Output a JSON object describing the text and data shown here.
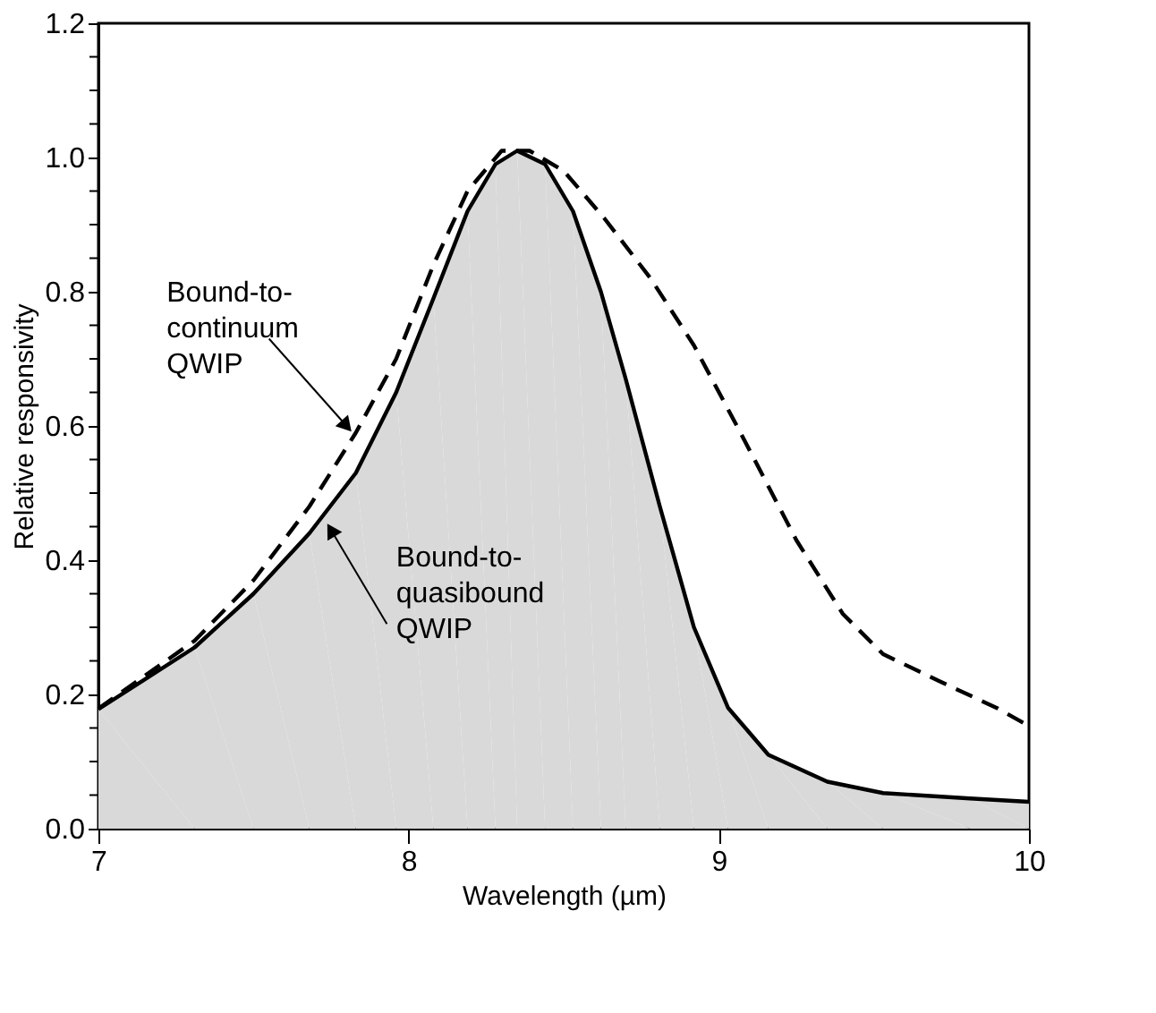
{
  "chart_data": {
    "type": "line",
    "xlabel": "Wavelength (µm)",
    "ylabel": "Relative responsivity",
    "xlim": [
      7,
      10
    ],
    "xticks": [
      7,
      8,
      9,
      10
    ],
    "ylim": [
      0,
      1.2
    ],
    "yticks": [
      {
        "value": 0,
        "label": "0.0"
      },
      {
        "value": 0.05,
        "label": null
      },
      {
        "value": 0.1,
        "label": null
      },
      {
        "value": 0.15,
        "label": null
      },
      {
        "value": 0.2,
        "label": "0.2"
      },
      {
        "value": 0.25,
        "label": null
      },
      {
        "value": 0.3,
        "label": null
      },
      {
        "value": 0.35,
        "label": null
      },
      {
        "value": 0.4,
        "label": "0.4"
      },
      {
        "value": 0.45,
        "label": null
      },
      {
        "value": 0.5,
        "label": null
      },
      {
        "value": 0.55,
        "label": null
      },
      {
        "value": 0.6,
        "label": "0.6"
      },
      {
        "value": 0.65,
        "label": null
      },
      {
        "value": 0.7,
        "label": null
      },
      {
        "value": 0.75,
        "label": null
      },
      {
        "value": 0.8,
        "label": "0.8"
      },
      {
        "value": 0.85,
        "label": null
      },
      {
        "value": 0.9,
        "label": null
      },
      {
        "value": 0.95,
        "label": null
      },
      {
        "value": 1.0,
        "label": "1.0"
      },
      {
        "value": 1.05,
        "label": null
      },
      {
        "value": 1.1,
        "label": null
      },
      {
        "value": 1.15,
        "label": null
      },
      {
        "value": 1.2,
        "label": "1.2"
      }
    ],
    "grid": false,
    "series": [
      {
        "type": "area",
        "color": "#d9d9d9",
        "line_style": "solid",
        "x": [
          7,
          7.31,
          7.5,
          7.68,
          7.83,
          7.96,
          8.08,
          8.19,
          8.28,
          8.35,
          8.44,
          8.53,
          8.62,
          8.7,
          8.81,
          8.92,
          9.03,
          9.16,
          9.35,
          9.53,
          9.81,
          10
        ],
        "values": [
          0.178,
          0.27,
          0.35,
          0.44,
          0.53,
          0.65,
          0.79,
          0.92,
          0.99,
          1.01,
          0.99,
          0.92,
          0.8,
          0.67,
          0.48,
          0.3,
          0.18,
          0.11,
          0.07,
          0.053,
          0.045,
          0.04
        ]
      },
      {
        "color": "#000000",
        "line_style": "dashed",
        "x": [
          7,
          7.31,
          7.5,
          7.68,
          7.83,
          7.96,
          8.08,
          8.19,
          8.3,
          8.39,
          8.5,
          8.63,
          8.78,
          8.92,
          9.07,
          9.25,
          9.4,
          9.53,
          9.71,
          9.9,
          10
        ],
        "values": [
          0.179,
          0.28,
          0.37,
          0.48,
          0.59,
          0.7,
          0.84,
          0.95,
          1.01,
          1.01,
          0.98,
          0.91,
          0.82,
          0.72,
          0.59,
          0.43,
          0.32,
          0.26,
          0.22,
          0.179,
          0.153
        ]
      }
    ],
    "annotations": [
      {
        "text": "Bound-to-\ncontinuum\nQWIP",
        "x": 7.8,
        "y": 0.6
      },
      {
        "text": "Bound-to-\nquasibound\nQWIP",
        "x": 7.75,
        "y": 0.445
      }
    ]
  }
}
